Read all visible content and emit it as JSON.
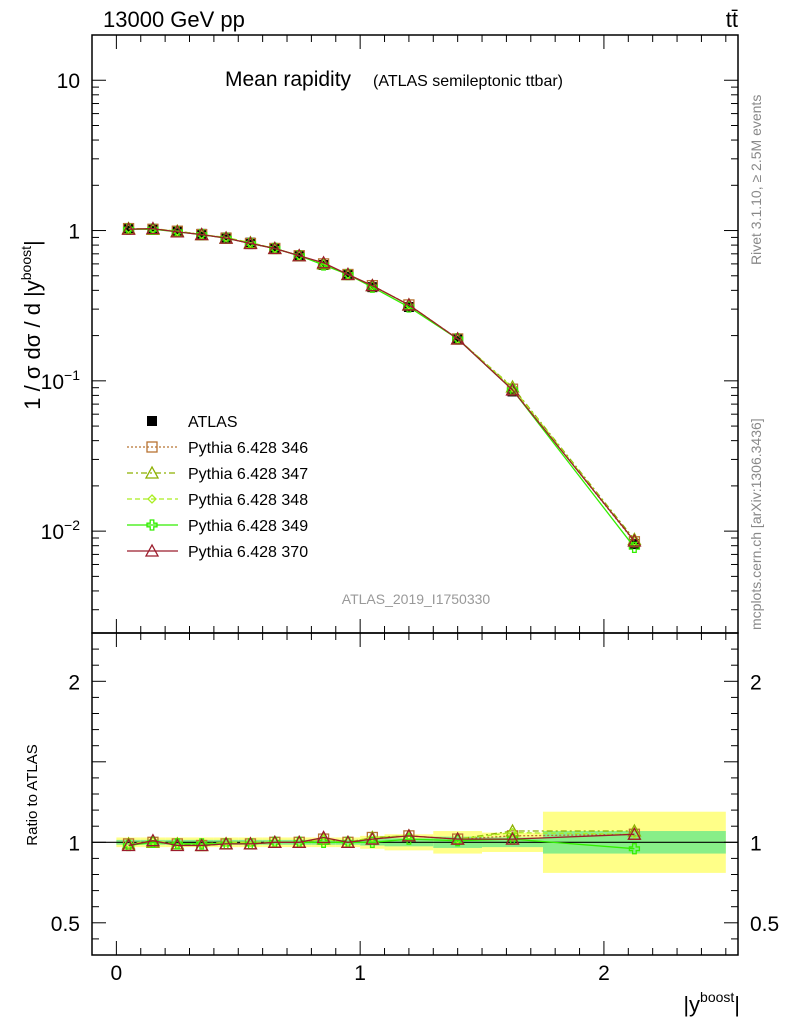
{
  "header": {
    "left": "13000 GeV pp",
    "right": "tt̄"
  },
  "side_labels": {
    "rivet": "Rivet 3.1.10, ≥ 2.5M events",
    "mcplots": "mcplots.cern.ch [arXiv:1306.3436]"
  },
  "watermark": "ATLAS_2019_I1750330",
  "colors": {
    "data": "#000000",
    "p346": "#b87333",
    "p347": "#8db000",
    "p348": "#aaee22",
    "p349": "#33ee00",
    "p370": "#9b1c2c",
    "band_outer": "#ffff88",
    "band_inner": "#88ee88"
  },
  "chart_data": [
    {
      "type": "line",
      "title": "Mean rapidity",
      "subtitle": "(ATLAS semileptonic ttbar)",
      "ylabel_main": "1 / σ dσ / d |y",
      "ylabel_sup": "boost",
      "ylabel_tail": "|",
      "yscale": "log",
      "xlim": [
        -0.1,
        2.55
      ],
      "ylim": [
        0.0021,
        20
      ],
      "y_ticks": [
        {
          "value": 10,
          "label": "10"
        },
        {
          "value": 1,
          "label": "1"
        },
        {
          "value": 0.1,
          "label": "10",
          "exp": "−1"
        },
        {
          "value": 0.01,
          "label": "10",
          "exp": "−2"
        }
      ],
      "legend_position": "middle-left",
      "x": [
        0.05,
        0.15,
        0.25,
        0.35,
        0.45,
        0.55,
        0.65,
        0.75,
        0.85,
        0.95,
        1.05,
        1.2,
        1.4,
        1.625,
        2.125
      ],
      "series": [
        {
          "name": "ATLAS",
          "key": "data",
          "marker": "square",
          "values": [
            1.04,
            1.02,
            0.99,
            0.95,
            0.9,
            0.83,
            0.76,
            0.68,
            0.59,
            0.51,
            0.42,
            0.31,
            0.19,
            0.085,
            0.0082
          ]
        },
        {
          "name": "Pythia 6.428 346",
          "key": "p346",
          "marker": "open-square",
          "dash": "2,2",
          "values": [
            1.03,
            1.02,
            0.99,
            0.94,
            0.89,
            0.82,
            0.76,
            0.68,
            0.6,
            0.51,
            0.43,
            0.32,
            0.19,
            0.088,
            0.0085
          ]
        },
        {
          "name": "Pythia 6.428 347",
          "key": "p347",
          "marker": "open-triangle",
          "dash": "6,3,2,3",
          "values": [
            1.03,
            1.02,
            0.99,
            0.94,
            0.89,
            0.83,
            0.76,
            0.68,
            0.6,
            0.51,
            0.43,
            0.32,
            0.19,
            0.091,
            0.0088
          ]
        },
        {
          "name": "Pythia 6.428 348",
          "key": "p348",
          "marker": "open-diamond",
          "dash": "5,3",
          "values": [
            1.03,
            1.03,
            0.99,
            0.94,
            0.9,
            0.83,
            0.76,
            0.68,
            0.6,
            0.51,
            0.43,
            0.32,
            0.19,
            0.09,
            0.0086
          ]
        },
        {
          "name": "Pythia 6.428 349",
          "key": "p349",
          "marker": "cross",
          "dash": "",
          "values": [
            1.02,
            1.02,
            0.98,
            0.94,
            0.89,
            0.82,
            0.76,
            0.68,
            0.59,
            0.51,
            0.42,
            0.31,
            0.19,
            0.087,
            0.0078
          ]
        },
        {
          "name": "Pythia 6.428 370",
          "key": "p370",
          "marker": "open-triangle",
          "dash": "",
          "values": [
            1.02,
            1.03,
            0.98,
            0.94,
            0.89,
            0.82,
            0.76,
            0.68,
            0.61,
            0.51,
            0.43,
            0.32,
            0.19,
            0.087,
            0.0086
          ]
        }
      ]
    },
    {
      "type": "line",
      "ylabel": "Ratio to ATLAS",
      "xlabel_main": "|y",
      "xlabel_sup": "boost",
      "xlabel_tail": "|",
      "ylim": [
        0.3,
        2.3
      ],
      "y_ticks": [
        {
          "value": 2,
          "label": "2"
        },
        {
          "value": 1,
          "label": "1"
        },
        {
          "value": 0.5,
          "label": "0.5"
        }
      ],
      "x_ticks": [
        {
          "value": 0,
          "label": "0"
        },
        {
          "value": 1,
          "label": "1"
        },
        {
          "value": 2,
          "label": "2"
        }
      ],
      "xlim": [
        -0.1,
        2.55
      ],
      "bin_edges": [
        0.0,
        0.1,
        0.2,
        0.3,
        0.4,
        0.5,
        0.6,
        0.7,
        0.8,
        0.9,
        1.0,
        1.1,
        1.3,
        1.5,
        1.75,
        2.5
      ],
      "band_outer": [
        0.03,
        0.03,
        0.03,
        0.03,
        0.03,
        0.03,
        0.03,
        0.03,
        0.03,
        0.03,
        0.04,
        0.05,
        0.07,
        0.06,
        0.19
      ],
      "band_inner": [
        0.015,
        0.015,
        0.015,
        0.015,
        0.015,
        0.015,
        0.015,
        0.015,
        0.015,
        0.015,
        0.02,
        0.025,
        0.035,
        0.03,
        0.07
      ],
      "x": [
        0.05,
        0.15,
        0.25,
        0.35,
        0.45,
        0.55,
        0.65,
        0.75,
        0.85,
        0.95,
        1.05,
        1.2,
        1.4,
        1.625,
        2.125
      ],
      "series": [
        {
          "key": "p346",
          "marker": "open-square",
          "dash": "2,2",
          "values": [
            0.99,
            1.0,
            0.99,
            0.98,
            0.99,
            0.99,
            1.0,
            1.0,
            1.02,
            1.0,
            1.03,
            1.04,
            1.02,
            1.04,
            1.05
          ]
        },
        {
          "key": "p347",
          "marker": "open-triangle",
          "dash": "6,3,2,3",
          "values": [
            0.99,
            1.0,
            0.99,
            0.98,
            0.99,
            0.99,
            1.0,
            1.0,
            1.02,
            1.0,
            1.03,
            1.04,
            1.02,
            1.07,
            1.07
          ]
        },
        {
          "key": "p348",
          "marker": "open-diamond",
          "dash": "5,3",
          "values": [
            0.99,
            1.01,
            0.99,
            0.99,
            1.0,
            1.0,
            1.0,
            1.0,
            1.02,
            1.0,
            1.03,
            1.04,
            1.02,
            1.06,
            1.05
          ]
        },
        {
          "key": "p349",
          "marker": "cross",
          "dash": "",
          "values": [
            0.98,
            1.0,
            0.99,
            0.99,
            0.99,
            0.99,
            1.0,
            1.0,
            1.0,
            1.0,
            1.0,
            1.02,
            1.01,
            1.02,
            0.96
          ]
        },
        {
          "key": "p370",
          "marker": "open-triangle",
          "dash": "",
          "values": [
            0.98,
            1.01,
            0.98,
            0.98,
            0.99,
            0.99,
            1.0,
            1.0,
            1.03,
            1.0,
            1.02,
            1.04,
            1.02,
            1.02,
            1.05
          ]
        }
      ]
    }
  ]
}
